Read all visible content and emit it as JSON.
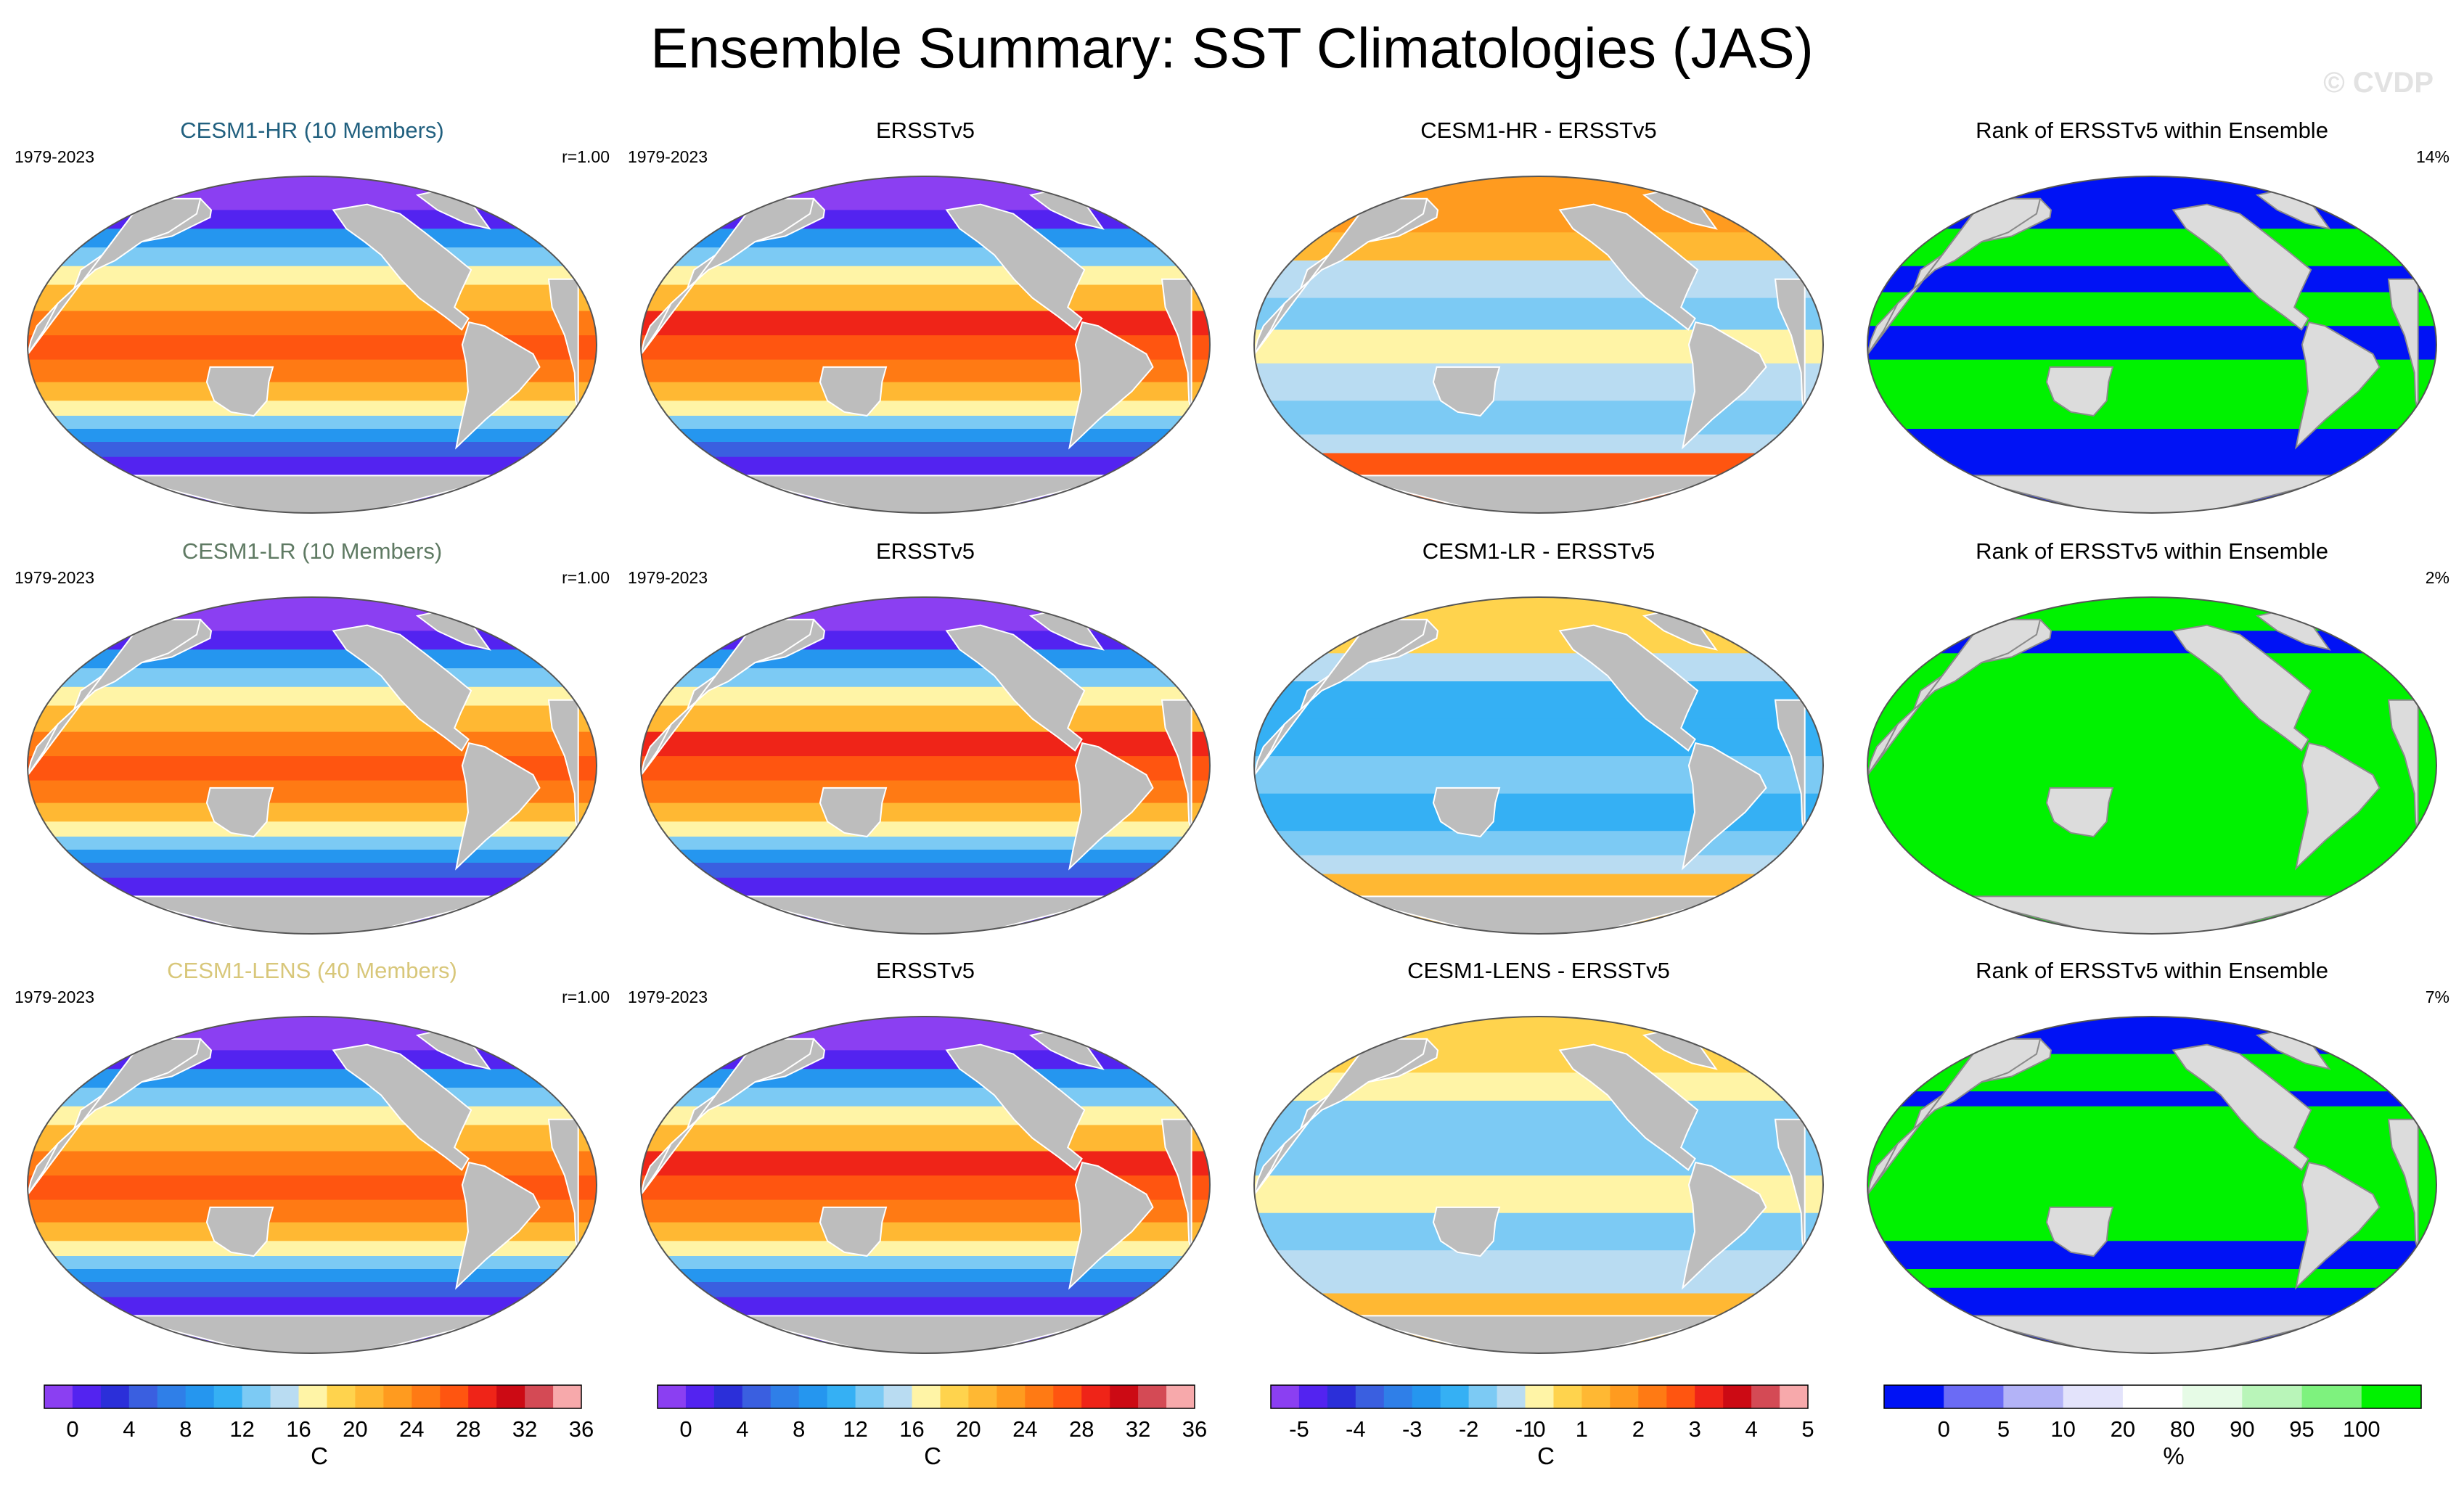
{
  "title": "Ensemble Summary: SST Climatologies (JAS)",
  "watermark": "© CVDP",
  "colors": {
    "land": "#bdbdbd",
    "rank_land": "#dcdcdc",
    "title_hr": "#21607f",
    "title_lr": "#5f7a63",
    "title_lens": "#d8c77a"
  },
  "rows": [
    {
      "panels": [
        {
          "title": "CESM1-HR (10 Members)",
          "title_color": "#21607f",
          "left": "1979-2023",
          "right": "r=1.00",
          "type": "sst",
          "scheme": "model"
        },
        {
          "title": "ERSSTv5",
          "title_color": "#000000",
          "left": "1979-2023",
          "right": "",
          "type": "sst",
          "scheme": "obs"
        },
        {
          "title": "CESM1-HR - ERSSTv5",
          "title_color": "#000000",
          "left": "",
          "right": "",
          "type": "diff",
          "scheme": "hr"
        },
        {
          "title": "Rank of ERSSTv5 within Ensemble",
          "title_color": "#000000",
          "left": "",
          "right": "14%",
          "type": "rank",
          "scheme": "hr"
        }
      ]
    },
    {
      "panels": [
        {
          "title": "CESM1-LR (10 Members)",
          "title_color": "#5f7a63",
          "left": "1979-2023",
          "right": "r=1.00",
          "type": "sst",
          "scheme": "model"
        },
        {
          "title": "ERSSTv5",
          "title_color": "#000000",
          "left": "1979-2023",
          "right": "",
          "type": "sst",
          "scheme": "obs"
        },
        {
          "title": "CESM1-LR - ERSSTv5",
          "title_color": "#000000",
          "left": "",
          "right": "",
          "type": "diff",
          "scheme": "lr"
        },
        {
          "title": "Rank of ERSSTv5 within Ensemble",
          "title_color": "#000000",
          "left": "",
          "right": "2%",
          "type": "rank",
          "scheme": "lr"
        }
      ]
    },
    {
      "panels": [
        {
          "title": "CESM1-LENS (40 Members)",
          "title_color": "#d8c77a",
          "left": "1979-2023",
          "right": "r=1.00",
          "type": "sst",
          "scheme": "model"
        },
        {
          "title": "ERSSTv5",
          "title_color": "#000000",
          "left": "1979-2023",
          "right": "",
          "type": "sst",
          "scheme": "obs"
        },
        {
          "title": "CESM1-LENS - ERSSTv5",
          "title_color": "#000000",
          "left": "",
          "right": "",
          "type": "diff",
          "scheme": "lens"
        },
        {
          "title": "Rank of ERSSTv5 within Ensemble",
          "title_color": "#000000",
          "left": "",
          "right": "7%",
          "type": "rank",
          "scheme": "lens"
        }
      ]
    }
  ],
  "colorbars": [
    {
      "unit": "C",
      "colors": [
        "#8b3ff2",
        "#5323f0",
        "#2b2fd9",
        "#3a5fe0",
        "#2f7fe8",
        "#2596ef",
        "#35b0f4",
        "#7ccaf4",
        "#b9dcf2",
        "#fff4a6",
        "#ffd34d",
        "#ffb833",
        "#ff9b1f",
        "#ff7a14",
        "#ff5510",
        "#ef2418",
        "#cc0a14",
        "#d44a55",
        "#f7a9ab"
      ],
      "ticks": [
        "0",
        "4",
        "8",
        "12",
        "16",
        "20",
        "24",
        "28",
        "32",
        "36"
      ],
      "tick_bounds": [
        1,
        3,
        5,
        7,
        9,
        11,
        13,
        15,
        17,
        19
      ]
    },
    {
      "unit": "C",
      "colors": [
        "#8b3ff2",
        "#5323f0",
        "#2b2fd9",
        "#3a5fe0",
        "#2f7fe8",
        "#2596ef",
        "#35b0f4",
        "#7ccaf4",
        "#b9dcf2",
        "#fff4a6",
        "#ffd34d",
        "#ffb833",
        "#ff9b1f",
        "#ff7a14",
        "#ff5510",
        "#ef2418",
        "#cc0a14",
        "#d44a55",
        "#f7a9ab"
      ],
      "ticks": [
        "0",
        "4",
        "8",
        "12",
        "16",
        "20",
        "24",
        "28",
        "32",
        "36"
      ],
      "tick_bounds": [
        1,
        3,
        5,
        7,
        9,
        11,
        13,
        15,
        17,
        19
      ]
    },
    {
      "unit": "C",
      "colors": [
        "#8b3ff2",
        "#5323f0",
        "#2b2fd9",
        "#3a5fe0",
        "#2f7fe8",
        "#2596ef",
        "#35b0f4",
        "#7ccaf4",
        "#b9dcf2",
        "#fff4a6",
        "#ffd34d",
        "#ffb833",
        "#ff9b1f",
        "#ff7a14",
        "#ff5510",
        "#ef2418",
        "#cc0a14",
        "#d44a55",
        "#f7a9ab"
      ],
      "ticks": [
        "-5",
        "-4",
        "-3",
        "-2",
        "-1",
        "0",
        "1",
        "2",
        "3",
        "4",
        "5"
      ],
      "tick_bounds": [
        1,
        3,
        5,
        7,
        9,
        9.5,
        11,
        13,
        15,
        17,
        19
      ]
    },
    {
      "unit": "%",
      "colors": [
        "#0012f5",
        "#6b6bf5",
        "#b3b3f7",
        "#e3e3fb",
        "#ffffff",
        "#e6fbe6",
        "#b9f5b9",
        "#7ef27e",
        "#00f200"
      ],
      "ticks": [
        "0",
        "5",
        "10",
        "20",
        "80",
        "90",
        "95",
        "100"
      ],
      "tick_bounds": [
        1,
        2,
        3,
        4,
        5,
        6,
        7,
        8
      ]
    }
  ]
}
